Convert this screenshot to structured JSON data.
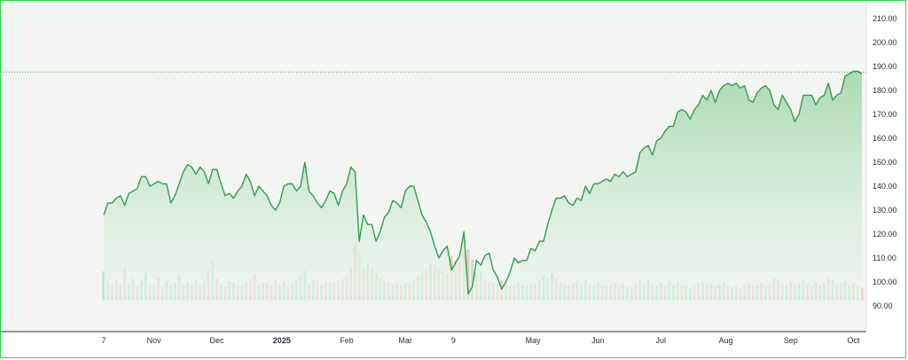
{
  "chart_data": {
    "type": "area",
    "title": "",
    "xlabel": "",
    "ylabel": "",
    "ylim": [
      85,
      215
    ],
    "y_ticks": [
      "210.00",
      "200.00",
      "190.00",
      "180.00",
      "170.00",
      "160.00",
      "150.00",
      "140.00",
      "130.00",
      "120.00",
      "110.00",
      "100.00",
      "90.00"
    ],
    "x_ticks": [
      {
        "label": "7",
        "day": 0
      },
      {
        "label": "Nov",
        "day": 24
      },
      {
        "label": "Dec",
        "day": 54
      },
      {
        "label": "2025",
        "day": 85,
        "bold": true
      },
      {
        "label": "Feb",
        "day": 116
      },
      {
        "label": "Mar",
        "day": 144
      },
      {
        "label": "9",
        "day": 167
      },
      {
        "label": "May",
        "day": 205
      },
      {
        "label": "Jun",
        "day": 236
      },
      {
        "label": "Jul",
        "day": 266
      },
      {
        "label": "Aug",
        "day": 297
      },
      {
        "label": "Sep",
        "day": 328
      },
      {
        "label": "Oct",
        "day": 358
      }
    ],
    "last_value": 187.7,
    "grid": false,
    "colors": {
      "line": "#2e9e4f",
      "area_top": "#a8d8b0",
      "area_bottom": "#eef6ef",
      "volume_up": "#a9dcb2",
      "volume_down": "#f0b6b6",
      "frame": "#39d353",
      "price_line": "#2e9e4f",
      "background": "#f3f5f3"
    },
    "price": [
      [
        0,
        128
      ],
      [
        2,
        133
      ],
      [
        4,
        133
      ],
      [
        6,
        135
      ],
      [
        8,
        136
      ],
      [
        10,
        132
      ],
      [
        12,
        137
      ],
      [
        14,
        138
      ],
      [
        16,
        139
      ],
      [
        18,
        144
      ],
      [
        20,
        144
      ],
      [
        22,
        140
      ],
      [
        24,
        141
      ],
      [
        26,
        142
      ],
      [
        28,
        141
      ],
      [
        30,
        141
      ],
      [
        32,
        133
      ],
      [
        34,
        136
      ],
      [
        36,
        141
      ],
      [
        38,
        146
      ],
      [
        40,
        149
      ],
      [
        42,
        148
      ],
      [
        44,
        145
      ],
      [
        46,
        148
      ],
      [
        48,
        146
      ],
      [
        50,
        141
      ],
      [
        52,
        147
      ],
      [
        54,
        147
      ],
      [
        56,
        141
      ],
      [
        58,
        136
      ],
      [
        60,
        137
      ],
      [
        62,
        135
      ],
      [
        64,
        138
      ],
      [
        66,
        140
      ],
      [
        68,
        145
      ],
      [
        70,
        142
      ],
      [
        72,
        136
      ],
      [
        74,
        140
      ],
      [
        76,
        138
      ],
      [
        78,
        136
      ],
      [
        80,
        132
      ],
      [
        82,
        130
      ],
      [
        84,
        133
      ],
      [
        86,
        140
      ],
      [
        88,
        141
      ],
      [
        90,
        141
      ],
      [
        92,
        138
      ],
      [
        94,
        140
      ],
      [
        96,
        150
      ],
      [
        98,
        138
      ],
      [
        100,
        136
      ],
      [
        102,
        133
      ],
      [
        104,
        131
      ],
      [
        106,
        134
      ],
      [
        108,
        138
      ],
      [
        110,
        137
      ],
      [
        112,
        132
      ],
      [
        114,
        138
      ],
      [
        116,
        141
      ],
      [
        118,
        148
      ],
      [
        120,
        146
      ],
      [
        122,
        117
      ],
      [
        124,
        128
      ],
      [
        126,
        124
      ],
      [
        128,
        124
      ],
      [
        130,
        117
      ],
      [
        132,
        121
      ],
      [
        134,
        127
      ],
      [
        136,
        129
      ],
      [
        138,
        134
      ],
      [
        140,
        133
      ],
      [
        142,
        131
      ],
      [
        144,
        138
      ],
      [
        146,
        140
      ],
      [
        148,
        140
      ],
      [
        150,
        134
      ],
      [
        152,
        128
      ],
      [
        154,
        125
      ],
      [
        156,
        121
      ],
      [
        158,
        115
      ],
      [
        160,
        110
      ],
      [
        162,
        113
      ],
      [
        164,
        115
      ],
      [
        166,
        105
      ],
      [
        168,
        108
      ],
      [
        170,
        111
      ],
      [
        172,
        121
      ],
      [
        174,
        95
      ],
      [
        176,
        98
      ],
      [
        178,
        109
      ],
      [
        180,
        107
      ],
      [
        182,
        111
      ],
      [
        184,
        112
      ],
      [
        186,
        105
      ],
      [
        188,
        102
      ],
      [
        190,
        97
      ],
      [
        192,
        100
      ],
      [
        194,
        104
      ],
      [
        196,
        110
      ],
      [
        198,
        108
      ],
      [
        200,
        109
      ],
      [
        202,
        109
      ],
      [
        204,
        114
      ],
      [
        206,
        113
      ],
      [
        208,
        117
      ],
      [
        210,
        117
      ],
      [
        212,
        124
      ],
      [
        214,
        130
      ],
      [
        216,
        135
      ],
      [
        218,
        135
      ],
      [
        220,
        136
      ],
      [
        222,
        133
      ],
      [
        224,
        132
      ],
      [
        226,
        135
      ],
      [
        228,
        134
      ],
      [
        230,
        140
      ],
      [
        232,
        137
      ],
      [
        234,
        141
      ],
      [
        236,
        141
      ],
      [
        238,
        142
      ],
      [
        240,
        143
      ],
      [
        242,
        142
      ],
      [
        244,
        145
      ],
      [
        246,
        144
      ],
      [
        248,
        146
      ],
      [
        250,
        144
      ],
      [
        252,
        145
      ],
      [
        254,
        146
      ],
      [
        256,
        154
      ],
      [
        258,
        156
      ],
      [
        260,
        157
      ],
      [
        262,
        153
      ],
      [
        264,
        159
      ],
      [
        266,
        160
      ],
      [
        268,
        163
      ],
      [
        270,
        165
      ],
      [
        272,
        165
      ],
      [
        274,
        171
      ],
      [
        276,
        172
      ],
      [
        278,
        171
      ],
      [
        280,
        168
      ],
      [
        282,
        172
      ],
      [
        284,
        174
      ],
      [
        286,
        178
      ],
      [
        288,
        176
      ],
      [
        290,
        180
      ],
      [
        292,
        175
      ],
      [
        294,
        180
      ],
      [
        296,
        182
      ],
      [
        298,
        183
      ],
      [
        300,
        182
      ],
      [
        302,
        183
      ],
      [
        304,
        181
      ],
      [
        306,
        182
      ],
      [
        308,
        176
      ],
      [
        310,
        175
      ],
      [
        312,
        179
      ],
      [
        314,
        181
      ],
      [
        316,
        182
      ],
      [
        318,
        180
      ],
      [
        320,
        174
      ],
      [
        322,
        172
      ],
      [
        324,
        178
      ],
      [
        326,
        175
      ],
      [
        328,
        172
      ],
      [
        330,
        167
      ],
      [
        332,
        170
      ],
      [
        334,
        178
      ],
      [
        336,
        178
      ],
      [
        338,
        178
      ],
      [
        340,
        174
      ],
      [
        342,
        177
      ],
      [
        344,
        178
      ],
      [
        346,
        183
      ],
      [
        348,
        176
      ],
      [
        350,
        178
      ],
      [
        352,
        179
      ],
      [
        354,
        186
      ],
      [
        356,
        187
      ],
      [
        358,
        188
      ],
      [
        360,
        188
      ],
      [
        362,
        187
      ]
    ],
    "volume": [
      [
        0,
        0.5,
        1
      ],
      [
        2,
        0.33,
        0
      ],
      [
        4,
        0.28,
        1
      ],
      [
        6,
        0.36,
        0
      ],
      [
        8,
        0.27,
        1
      ],
      [
        10,
        0.55,
        0
      ],
      [
        12,
        0.31,
        1
      ],
      [
        14,
        0.38,
        1
      ],
      [
        16,
        0.24,
        0
      ],
      [
        18,
        0.35,
        1
      ],
      [
        20,
        0.47,
        1
      ],
      [
        22,
        0.26,
        0
      ],
      [
        24,
        0.28,
        1
      ],
      [
        26,
        0.39,
        0
      ],
      [
        28,
        0.22,
        1
      ],
      [
        30,
        0.33,
        1
      ],
      [
        32,
        0.25,
        0
      ],
      [
        34,
        0.3,
        1
      ],
      [
        36,
        0.44,
        1
      ],
      [
        38,
        0.27,
        0
      ],
      [
        40,
        0.31,
        1
      ],
      [
        42,
        0.26,
        0
      ],
      [
        44,
        0.35,
        1
      ],
      [
        46,
        0.29,
        0
      ],
      [
        48,
        0.34,
        1
      ],
      [
        50,
        0.52,
        0
      ],
      [
        52,
        0.66,
        1
      ],
      [
        54,
        0.38,
        0
      ],
      [
        56,
        0.28,
        1
      ],
      [
        58,
        0.24,
        0
      ],
      [
        60,
        0.33,
        1
      ],
      [
        62,
        0.3,
        1
      ],
      [
        64,
        0.25,
        0
      ],
      [
        66,
        0.28,
        1
      ],
      [
        68,
        0.32,
        0
      ],
      [
        70,
        0.37,
        0
      ],
      [
        72,
        0.44,
        0
      ],
      [
        74,
        0.26,
        1
      ],
      [
        76,
        0.31,
        1
      ],
      [
        78,
        0.29,
        0
      ],
      [
        80,
        0.24,
        1
      ],
      [
        82,
        0.35,
        0
      ],
      [
        84,
        0.27,
        1
      ],
      [
        86,
        0.33,
        1
      ],
      [
        88,
        0.25,
        0
      ],
      [
        90,
        0.3,
        1
      ],
      [
        92,
        0.35,
        1
      ],
      [
        94,
        0.42,
        1
      ],
      [
        96,
        0.51,
        1
      ],
      [
        98,
        0.31,
        0
      ],
      [
        100,
        0.35,
        1
      ],
      [
        102,
        0.33,
        0
      ],
      [
        104,
        0.28,
        1
      ],
      [
        106,
        0.32,
        0
      ],
      [
        108,
        0.29,
        1
      ],
      [
        110,
        0.31,
        0
      ],
      [
        112,
        0.34,
        1
      ],
      [
        114,
        0.37,
        0
      ],
      [
        116,
        0.45,
        1
      ],
      [
        118,
        0.57,
        0
      ],
      [
        120,
        1.0,
        0
      ],
      [
        122,
        0.79,
        1
      ],
      [
        124,
        0.58,
        0
      ],
      [
        126,
        0.64,
        1
      ],
      [
        128,
        0.55,
        0
      ],
      [
        130,
        0.47,
        1
      ],
      [
        132,
        0.38,
        1
      ],
      [
        134,
        0.34,
        0
      ],
      [
        136,
        0.31,
        1
      ],
      [
        138,
        0.28,
        0
      ],
      [
        140,
        0.3,
        1
      ],
      [
        142,
        0.26,
        0
      ],
      [
        144,
        0.3,
        1
      ],
      [
        146,
        0.31,
        0
      ],
      [
        148,
        0.36,
        1
      ],
      [
        150,
        0.42,
        0
      ],
      [
        152,
        0.47,
        1
      ],
      [
        154,
        0.52,
        0
      ],
      [
        156,
        0.63,
        1
      ],
      [
        158,
        0.6,
        0
      ],
      [
        160,
        0.56,
        1
      ],
      [
        162,
        0.5,
        0
      ],
      [
        164,
        0.46,
        1
      ],
      [
        166,
        0.76,
        0
      ],
      [
        168,
        0.68,
        1
      ],
      [
        170,
        0.64,
        0
      ],
      [
        172,
        0.84,
        1
      ],
      [
        174,
        0.88,
        0
      ],
      [
        176,
        0.7,
        1
      ],
      [
        178,
        0.45,
        0
      ],
      [
        180,
        0.5,
        1
      ],
      [
        182,
        0.36,
        0
      ],
      [
        184,
        0.32,
        1
      ],
      [
        186,
        0.3,
        0
      ],
      [
        188,
        0.26,
        1
      ],
      [
        190,
        0.33,
        0
      ],
      [
        192,
        0.29,
        1
      ],
      [
        194,
        0.25,
        0
      ],
      [
        196,
        0.28,
        1
      ],
      [
        198,
        0.31,
        1
      ],
      [
        200,
        0.27,
        0
      ],
      [
        202,
        0.24,
        1
      ],
      [
        204,
        0.3,
        1
      ],
      [
        206,
        0.29,
        0
      ],
      [
        208,
        0.35,
        1
      ],
      [
        210,
        0.41,
        1
      ],
      [
        212,
        0.38,
        1
      ],
      [
        214,
        0.47,
        1
      ],
      [
        216,
        0.37,
        0
      ],
      [
        218,
        0.31,
        1
      ],
      [
        220,
        0.27,
        0
      ],
      [
        222,
        0.26,
        1
      ],
      [
        224,
        0.3,
        0
      ],
      [
        226,
        0.34,
        1
      ],
      [
        228,
        0.28,
        1
      ],
      [
        230,
        0.36,
        1
      ],
      [
        232,
        0.27,
        0
      ],
      [
        234,
        0.25,
        1
      ],
      [
        236,
        0.3,
        1
      ],
      [
        238,
        0.27,
        0
      ],
      [
        240,
        0.24,
        1
      ],
      [
        242,
        0.26,
        1
      ],
      [
        244,
        0.29,
        0
      ],
      [
        246,
        0.24,
        1
      ],
      [
        248,
        0.28,
        0
      ],
      [
        250,
        0.25,
        1
      ],
      [
        252,
        0.22,
        1
      ],
      [
        254,
        0.29,
        0
      ],
      [
        256,
        0.33,
        1
      ],
      [
        258,
        0.28,
        1
      ],
      [
        260,
        0.35,
        1
      ],
      [
        262,
        0.27,
        0
      ],
      [
        264,
        0.24,
        1
      ],
      [
        266,
        0.3,
        1
      ],
      [
        268,
        0.26,
        0
      ],
      [
        270,
        0.33,
        1
      ],
      [
        272,
        0.28,
        1
      ],
      [
        274,
        0.32,
        1
      ],
      [
        276,
        0.27,
        0
      ],
      [
        278,
        0.25,
        1
      ],
      [
        280,
        0.22,
        1
      ],
      [
        282,
        0.27,
        0
      ],
      [
        284,
        0.3,
        1
      ],
      [
        286,
        0.32,
        1
      ],
      [
        288,
        0.26,
        0
      ],
      [
        290,
        0.29,
        1
      ],
      [
        292,
        0.24,
        0
      ],
      [
        294,
        0.27,
        1
      ],
      [
        296,
        0.3,
        1
      ],
      [
        298,
        0.25,
        0
      ],
      [
        300,
        0.23,
        1
      ],
      [
        302,
        0.26,
        0
      ],
      [
        304,
        0.22,
        1
      ],
      [
        306,
        0.25,
        0
      ],
      [
        308,
        0.28,
        1
      ],
      [
        310,
        0.24,
        0
      ],
      [
        312,
        0.27,
        1
      ],
      [
        314,
        0.29,
        0
      ],
      [
        316,
        0.25,
        1
      ],
      [
        318,
        0.31,
        0
      ],
      [
        320,
        0.38,
        0
      ],
      [
        322,
        0.36,
        1
      ],
      [
        324,
        0.3,
        0
      ],
      [
        326,
        0.27,
        1
      ],
      [
        328,
        0.33,
        0
      ],
      [
        330,
        0.25,
        1
      ],
      [
        332,
        0.29,
        1
      ],
      [
        334,
        0.34,
        1
      ],
      [
        336,
        0.27,
        0
      ],
      [
        338,
        0.24,
        1
      ],
      [
        340,
        0.3,
        0
      ],
      [
        342,
        0.27,
        1
      ],
      [
        344,
        0.31,
        1
      ],
      [
        346,
        0.38,
        0
      ],
      [
        348,
        0.35,
        1
      ],
      [
        350,
        0.28,
        1
      ],
      [
        352,
        0.31,
        0
      ],
      [
        354,
        0.34,
        1
      ],
      [
        356,
        0.27,
        1
      ],
      [
        358,
        0.3,
        0
      ],
      [
        360,
        0.25,
        1
      ],
      [
        362,
        0.22,
        0
      ]
    ]
  }
}
